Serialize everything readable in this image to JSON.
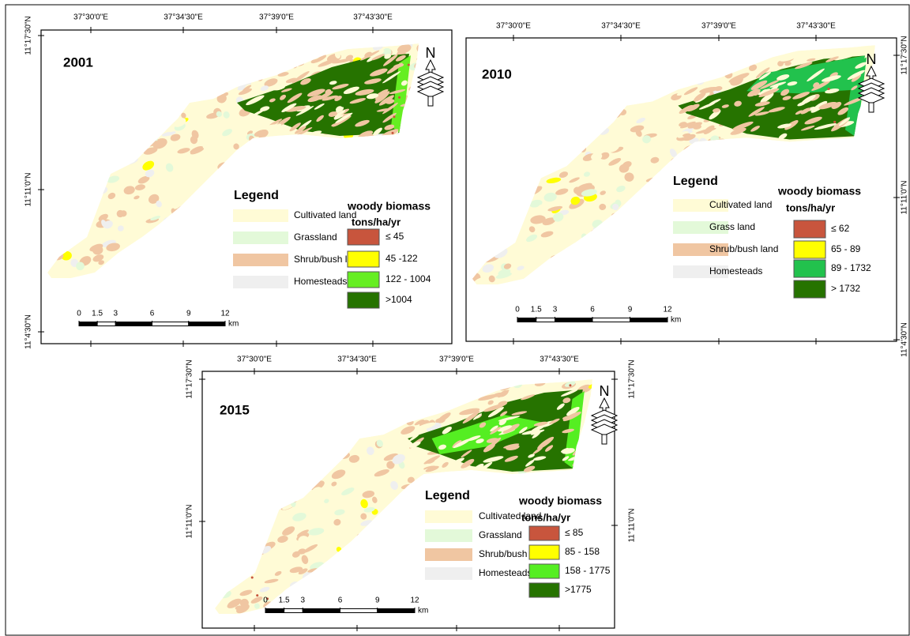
{
  "panels": [
    {
      "year": "2001",
      "top_labels": [
        "37°30'0\"E",
        "37°34'30\"E",
        "37°39'0\"E",
        "37°43'30\"E"
      ],
      "left_labels": [
        "11°17'30\"N",
        "11°11'0\"N",
        "11°4'30\"N"
      ],
      "north": "N",
      "legend": {
        "title": "Legend",
        "land_classes": [
          {
            "label": "Cultivated land",
            "color": "#fffbd6"
          },
          {
            "label": "Grassland",
            "color": "#e3f9d9"
          },
          {
            "label": "Shrub/bush land",
            "color": "#f0c6a2"
          },
          {
            "label": "Homesteads",
            "color": "#efefef"
          }
        ],
        "biomass_title": "woody biomass",
        "biomass_unit": "tons/ha/yr",
        "biomass_classes": [
          {
            "label": "≤ 45",
            "color": "#c8553d"
          },
          {
            "label": "45 -122",
            "color": "#ffff00"
          },
          {
            "label": "122 - 1004",
            "color": "#66ee22"
          },
          {
            "label": ">1004",
            "color": "#267300"
          }
        ]
      },
      "scale": {
        "ticks": [
          0,
          1.5,
          3,
          6,
          9,
          12
        ],
        "unit": "km"
      }
    },
    {
      "year": "2010",
      "top_labels": [
        "37°30'0\"E",
        "37°34'30\"E",
        "37°39'0\"E",
        "37°43'30\"E"
      ],
      "right_labels": [
        "11°17'30\"N",
        "11°11'0\"N",
        "11°4'30\"N"
      ],
      "north": "N",
      "legend": {
        "title": "Legend",
        "land_classes": [
          {
            "label": "Cultivated land",
            "color": "#fffbd6"
          },
          {
            "label": "Grass land",
            "color": "#e3f9d9"
          },
          {
            "label": "Shrub/bush land",
            "color": "#f0c6a2"
          },
          {
            "label": "Homesteads",
            "color": "#efefef"
          }
        ],
        "biomass_title": "woody biomass",
        "biomass_unit": "tons/ha/yr",
        "biomass_classes": [
          {
            "label": "≤ 62",
            "color": "#c8553d"
          },
          {
            "label": "65 - 89",
            "color": "#ffff00"
          },
          {
            "label": "89 - 1732",
            "color": "#22c24d"
          },
          {
            "label": "> 1732",
            "color": "#267300"
          }
        ]
      },
      "scale": {
        "ticks": [
          0,
          1.5,
          3,
          6,
          9,
          12
        ],
        "unit": "km"
      }
    },
    {
      "year": "2015",
      "top_labels": [
        "37°30'0\"E",
        "37°34'30\"E",
        "37°39'0\"E",
        "37°43'30\"E"
      ],
      "left_labels": [
        "11°17'30\"N",
        "11°11'0\"N"
      ],
      "right_labels": [
        "11°17'30\"N",
        "11°11'0\"N"
      ],
      "north": "N",
      "legend": {
        "title": "Legend",
        "land_classes": [
          {
            "label": "Cultivated land",
            "color": "#fffbd6"
          },
          {
            "label": "Grassland",
            "color": "#e3f9d9"
          },
          {
            "label": "Shrub/bush land",
            "color": "#f0c6a2"
          },
          {
            "label": "Homesteads",
            "color": "#efefef"
          }
        ],
        "biomass_title": "woody biomass",
        "biomass_unit": "tons/ha/yr",
        "biomass_classes": [
          {
            "label": "≤ 85",
            "color": "#c8553d"
          },
          {
            "label": "85 - 158",
            "color": "#ffff00"
          },
          {
            "label": "158 - 1775",
            "color": "#55ee22"
          },
          {
            "label": ">1775",
            "color": "#267300"
          }
        ]
      },
      "scale": {
        "ticks": [
          0,
          1.5,
          3,
          6,
          9,
          12
        ],
        "unit": "km"
      }
    }
  ]
}
